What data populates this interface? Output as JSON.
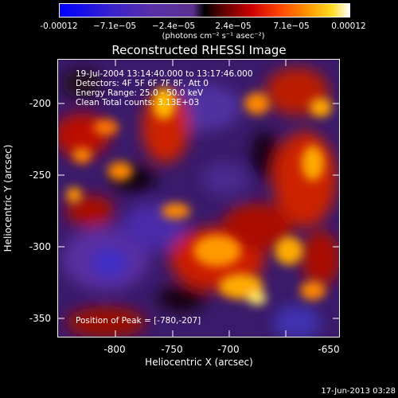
{
  "colorbar": {
    "tick_labels": [
      "-0.00012",
      "−7.1e−05",
      "−2.4e−05",
      "2.4e−05",
      "7.1e−05",
      "0.00012"
    ],
    "units": "(photons cm⁻² s⁻¹ asec⁻²)",
    "colors": [
      "#0000ff",
      "#3a22cc",
      "#5a30a8",
      "#6a3aa0",
      "#000000",
      "#660000",
      "#cc0000",
      "#ff4400",
      "#ff9900",
      "#ffdd00",
      "#ffffff"
    ]
  },
  "title": "Reconstructed RHESSI Image",
  "info": {
    "line1": "19-Jul-2004 13:14:40.000 to 13:17:46.000",
    "line2": "Detectors: 4F 5F 6F 7F 8F, Att 0",
    "line3": "Energy Range: 25.0 - 50.0 keV",
    "line4": "Clean     Total counts: 3.13E+03"
  },
  "peak_label": "Position of Peak = [-780,-207]",
  "x_axis": {
    "label": "Heliocentric X (arcsec)",
    "ticks": [
      "-800",
      "-750",
      "-700",
      "-650"
    ]
  },
  "y_axis": {
    "label": "Heliocentric Y (arcsec)",
    "ticks": [
      "-200",
      "-250",
      "-300",
      "-350"
    ]
  },
  "timestamp": "17-Jun-2013 03:28"
}
